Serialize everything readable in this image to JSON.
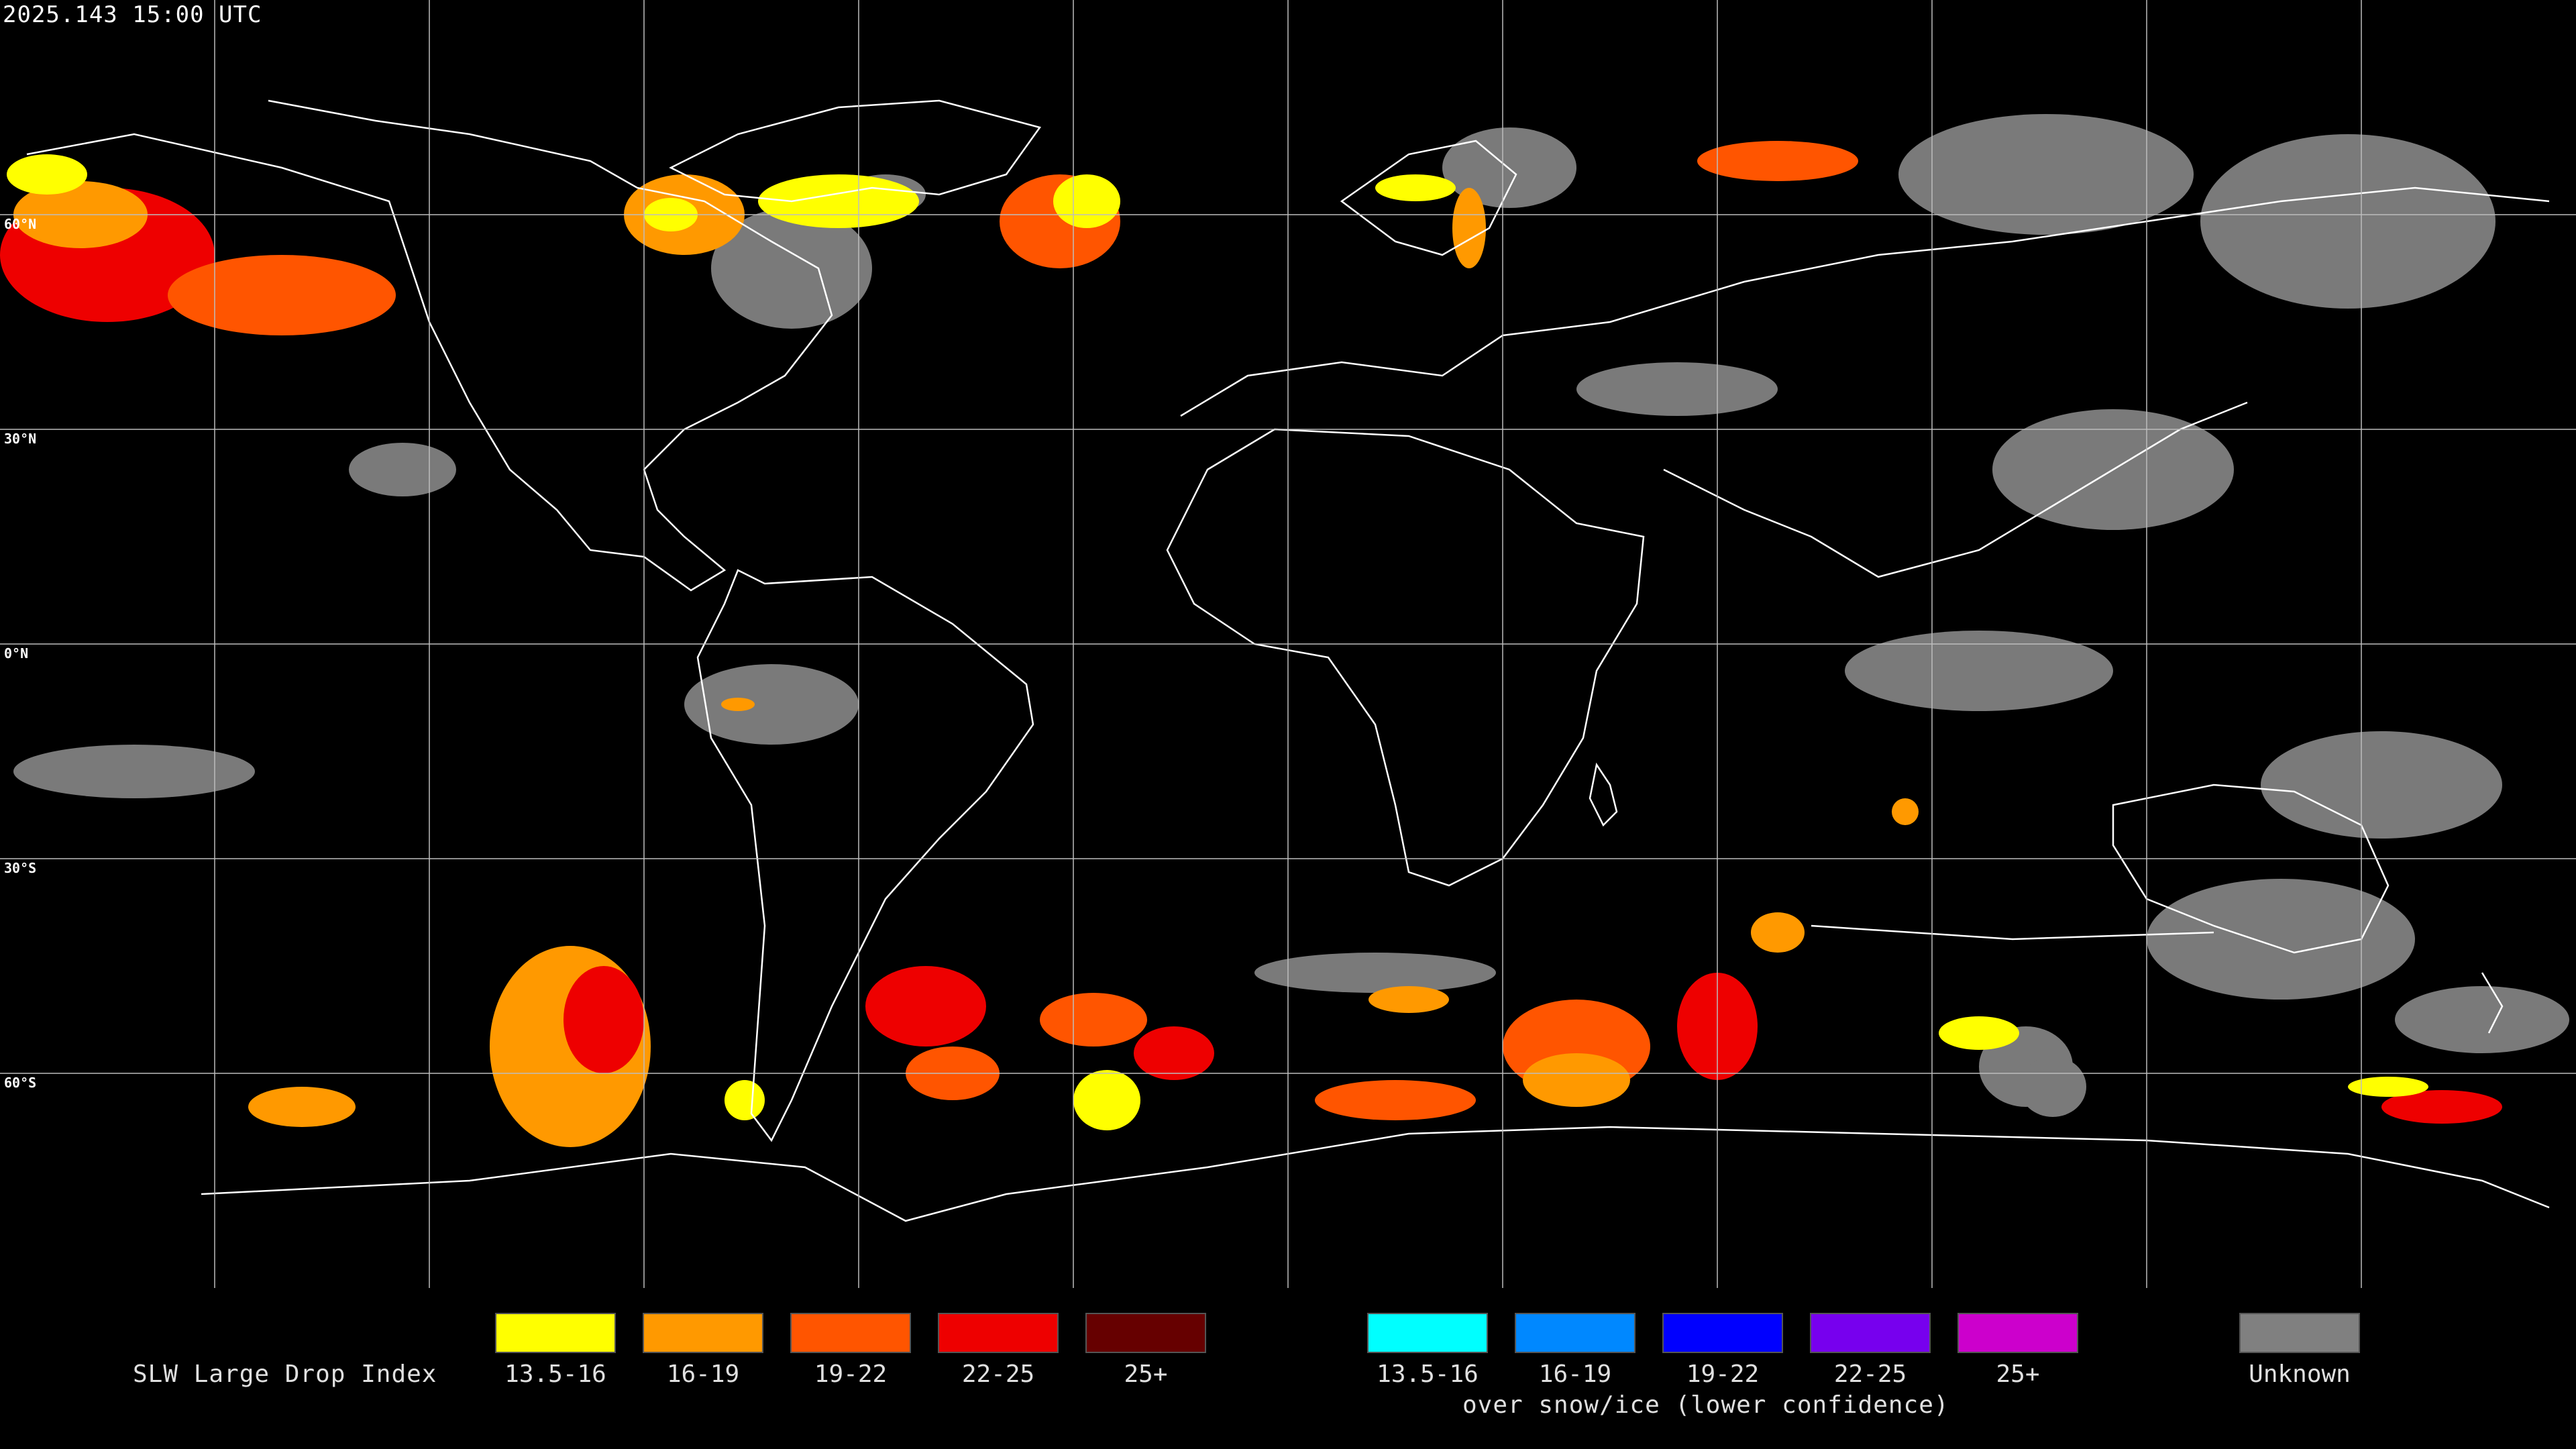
{
  "header": {
    "timestamp": "2025.143 15:00 UTC"
  },
  "lat_labels": [
    "60°N",
    "30°N",
    "0°N",
    "30°S",
    "60°S"
  ],
  "legend": {
    "title": "SLW Large Drop Index",
    "liquid": [
      {
        "label": "13.5-16",
        "color": "#ffff00"
      },
      {
        "label": "16-19",
        "color": "#ff9900"
      },
      {
        "label": "19-22",
        "color": "#ff5500"
      },
      {
        "label": "22-25",
        "color": "#ee0000"
      },
      {
        "label": "25+",
        "color": "#660000"
      }
    ],
    "snow_ice": [
      {
        "label": "13.5-16",
        "color": "#00ffff"
      },
      {
        "label": "16-19",
        "color": "#0088ff"
      },
      {
        "label": "19-22",
        "color": "#0000ff"
      },
      {
        "label": "22-25",
        "color": "#7700ee"
      },
      {
        "label": "25+",
        "color": "#cc00cc"
      }
    ],
    "snow_ice_caption": "over snow/ice (lower confidence)",
    "unknown": {
      "label": "Unknown",
      "color": "#808080"
    }
  }
}
